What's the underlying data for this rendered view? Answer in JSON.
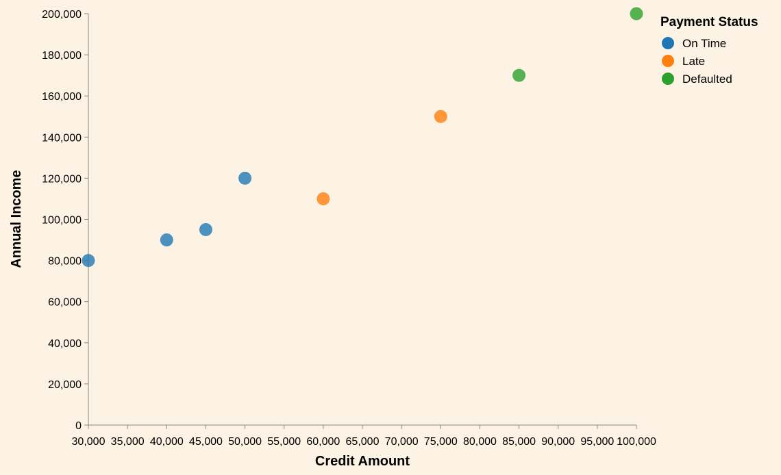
{
  "chart_data": {
    "type": "scatter",
    "title": "",
    "xlabel": "Credit Amount",
    "ylabel": "Annual Income",
    "xlim": [
      30000,
      100000
    ],
    "ylim": [
      0,
      200000
    ],
    "x_ticks": [
      "30,000",
      "35,000",
      "40,000",
      "45,000",
      "50,000",
      "55,000",
      "60,000",
      "65,000",
      "70,000",
      "75,000",
      "80,000",
      "85,000",
      "90,000",
      "95,000",
      "100,000"
    ],
    "x_tick_values": [
      30000,
      35000,
      40000,
      45000,
      50000,
      55000,
      60000,
      65000,
      70000,
      75000,
      80000,
      85000,
      90000,
      95000,
      100000
    ],
    "y_ticks": [
      "0",
      "20,000",
      "40,000",
      "60,000",
      "80,000",
      "100,000",
      "120,000",
      "140,000",
      "160,000",
      "180,000",
      "200,000"
    ],
    "y_tick_values": [
      0,
      20000,
      40000,
      60000,
      80000,
      100000,
      120000,
      140000,
      160000,
      180000,
      200000
    ],
    "grid": false,
    "legend": {
      "title": "Payment Status",
      "position": "top-right",
      "entries": [
        {
          "label": "On Time",
          "color": "#1f77b4"
        },
        {
          "label": "Late",
          "color": "#ff7f0e"
        },
        {
          "label": "Defaulted",
          "color": "#2ca02c"
        }
      ]
    },
    "series": [
      {
        "name": "On Time",
        "color": "#1f77b4",
        "points": [
          [
            30000,
            80000
          ],
          [
            40000,
            90000
          ],
          [
            45000,
            95000
          ],
          [
            50000,
            120000
          ]
        ]
      },
      {
        "name": "Late",
        "color": "#ff7f0e",
        "points": [
          [
            60000,
            110000
          ],
          [
            75000,
            150000
          ]
        ]
      },
      {
        "name": "Defaulted",
        "color": "#2ca02c",
        "points": [
          [
            85000,
            170000
          ],
          [
            100000,
            200000
          ]
        ]
      }
    ]
  }
}
